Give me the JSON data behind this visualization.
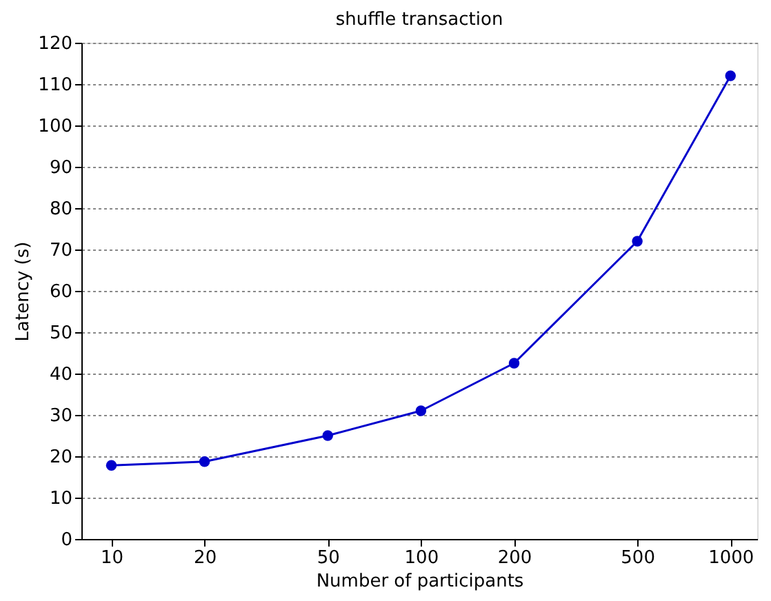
{
  "chart_data": {
    "type": "line",
    "title": "shuffle transaction",
    "xlabel": "Number of participants",
    "ylabel": "Latency (s)",
    "x": [
      10,
      20,
      50,
      100,
      200,
      500,
      1000
    ],
    "series": [
      {
        "color": "#0000cc",
        "values": [
          17.8,
          18.7,
          25.0,
          31.0,
          42.5,
          72.0,
          112.0
        ]
      }
    ],
    "log": "x",
    "xlim": [
      8,
      1220
    ],
    "xticks": [
      10,
      20,
      50,
      100,
      200,
      500,
      1000
    ],
    "ylim": [
      0,
      120
    ],
    "yticks": [
      0,
      10,
      20,
      30,
      40,
      50,
      60,
      70,
      80,
      90,
      100,
      110,
      120
    ],
    "grid": "y",
    "marker": "circle",
    "line_style": "solid"
  }
}
